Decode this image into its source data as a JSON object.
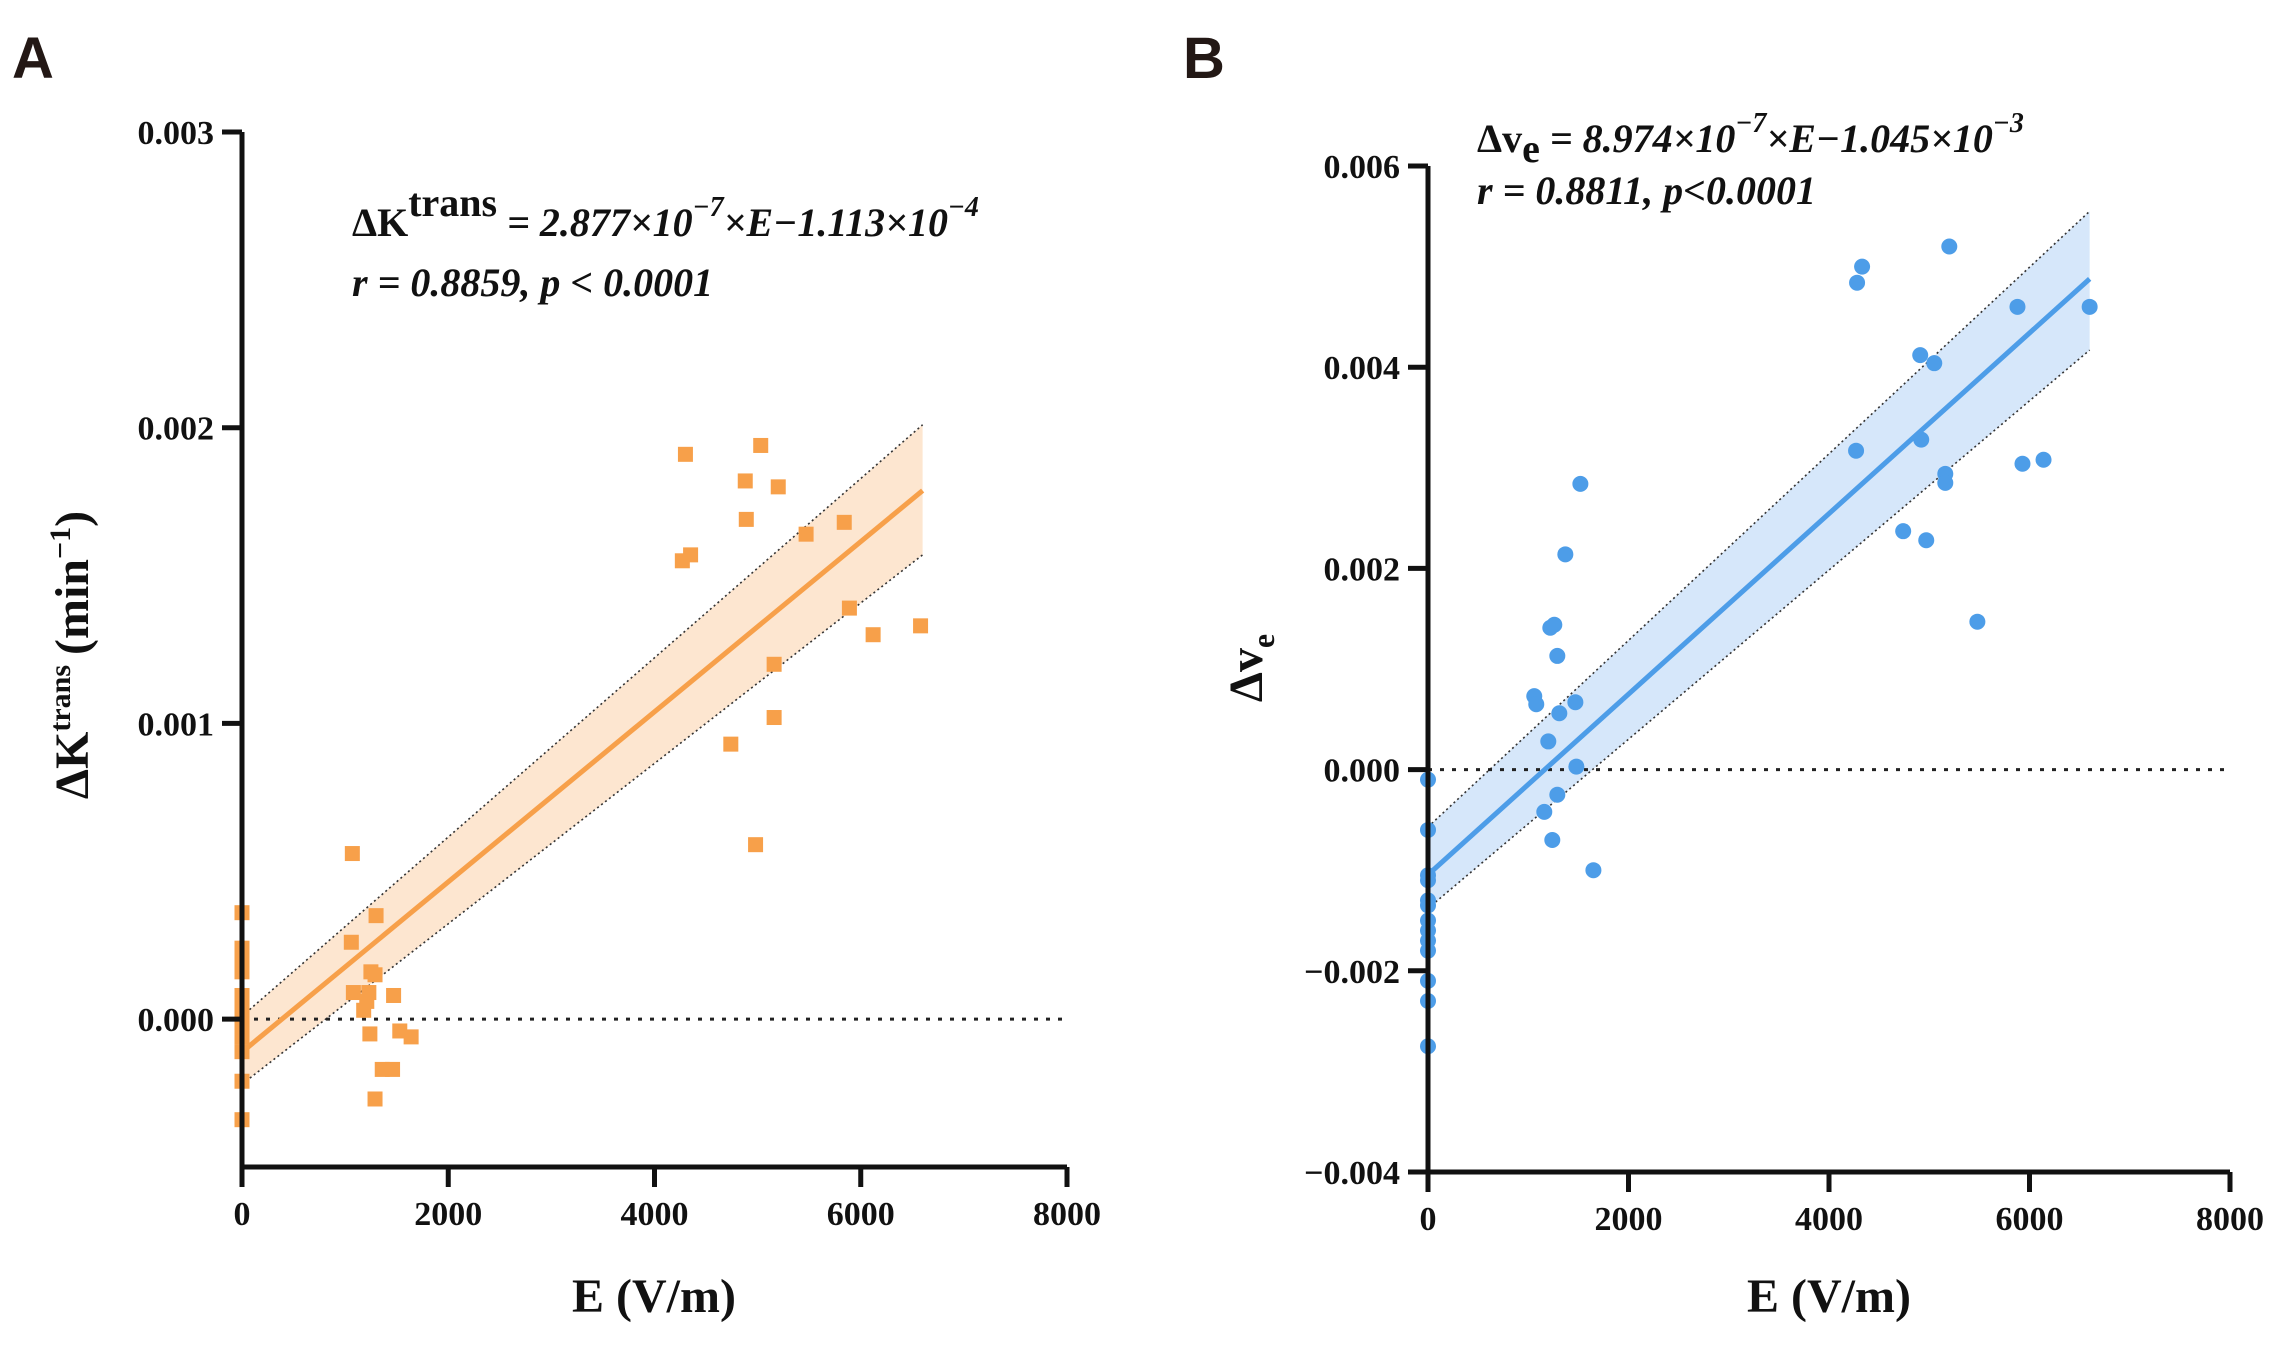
{
  "chart_data": [
    {
      "panel": "A",
      "type": "scatter",
      "xlabel": "E (V/m)",
      "ylabel": {
        "base": "ΔK",
        "sup": "trans",
        "unit_prefix": "(min",
        "unit_sup": "−1",
        "unit_suffix": ")"
      },
      "xlim": [
        0,
        8000
      ],
      "ylim": [
        -0.0005,
        0.003
      ],
      "xticks": [
        0,
        2000,
        4000,
        6000,
        8000
      ],
      "xtick_labels": [
        "0",
        "2000",
        "4000",
        "6000",
        "8000"
      ],
      "yticks": [
        0.0,
        0.001,
        0.002,
        0.003
      ],
      "ytick_labels": [
        "0.000",
        "0.001",
        "0.002",
        "0.003"
      ],
      "equation": {
        "lhs": "ΔK",
        "lhs_sup": "trans",
        "rhs": " = 2.877×10",
        "exp1": "−7",
        "mid": "×E−1.113×10",
        "exp2": "−4"
      },
      "stats": "r = 0.8859, p <  0.0001",
      "marker": "square",
      "color": "#F7A04A",
      "band_color": "#FDE6D0",
      "fit": {
        "slope": 2.877e-07,
        "intercept": -0.0001113,
        "x_range": [
          0,
          6600
        ],
        "ci_lower": [
          -0.00022,
          0.00157
        ],
        "ci_upper": [
          1e-05,
          0.00201
        ]
      },
      "points": [
        {
          "x": 0,
          "y": 0.00036
        },
        {
          "x": 0,
          "y": 0.00024
        },
        {
          "x": 0,
          "y": 0.00022
        },
        {
          "x": 0,
          "y": 0.0002
        },
        {
          "x": 0,
          "y": 0.00018
        },
        {
          "x": 0,
          "y": 0.00016
        },
        {
          "x": 0,
          "y": 8e-05
        },
        {
          "x": 0,
          "y": 4e-05
        },
        {
          "x": 0,
          "y": 0.0
        },
        {
          "x": 0,
          "y": -3e-05
        },
        {
          "x": 0,
          "y": -6e-05
        },
        {
          "x": 0,
          "y": -0.00011
        },
        {
          "x": 0,
          "y": -0.00021
        },
        {
          "x": 0,
          "y": -0.00034
        },
        {
          "x": 1070,
          "y": 0.00056
        },
        {
          "x": 1060,
          "y": 0.00026
        },
        {
          "x": 1300,
          "y": 0.00035
        },
        {
          "x": 1080,
          "y": 9e-05
        },
        {
          "x": 1180,
          "y": 3e-05
        },
        {
          "x": 1230,
          "y": 9e-05
        },
        {
          "x": 1250,
          "y": 0.00016
        },
        {
          "x": 1290,
          "y": 0.00015
        },
        {
          "x": 1210,
          "y": 6e-05
        },
        {
          "x": 1240,
          "y": -5e-05
        },
        {
          "x": 1470,
          "y": 8e-05
        },
        {
          "x": 1530,
          "y": -4e-05
        },
        {
          "x": 1640,
          "y": -6e-05
        },
        {
          "x": 1360,
          "y": -0.00017
        },
        {
          "x": 1460,
          "y": -0.00017
        },
        {
          "x": 1290,
          "y": -0.00027
        },
        {
          "x": 4300,
          "y": 0.00191
        },
        {
          "x": 4270,
          "y": 0.00155
        },
        {
          "x": 4350,
          "y": 0.00157
        },
        {
          "x": 4740,
          "y": 0.00093
        },
        {
          "x": 4980,
          "y": 0.00059
        },
        {
          "x": 5030,
          "y": 0.00194
        },
        {
          "x": 4880,
          "y": 0.00182
        },
        {
          "x": 4890,
          "y": 0.00169
        },
        {
          "x": 5200,
          "y": 0.0018
        },
        {
          "x": 5160,
          "y": 0.0012
        },
        {
          "x": 5160,
          "y": 0.00102
        },
        {
          "x": 5470,
          "y": 0.00164
        },
        {
          "x": 5840,
          "y": 0.00168
        },
        {
          "x": 5890,
          "y": 0.00139
        },
        {
          "x": 6120,
          "y": 0.0013
        },
        {
          "x": 6580,
          "y": 0.00133
        }
      ]
    },
    {
      "panel": "B",
      "type": "scatter",
      "xlabel": "E (V/m)",
      "ylabel": {
        "base": "Δv",
        "sub": "e"
      },
      "xlim": [
        0,
        8000
      ],
      "ylim": [
        -0.004,
        0.006
      ],
      "xticks": [
        0,
        2000,
        4000,
        6000,
        8000
      ],
      "xtick_labels": [
        "0",
        "2000",
        "4000",
        "6000",
        "8000"
      ],
      "yticks": [
        -0.004,
        -0.002,
        0.0,
        0.002,
        0.004,
        0.006
      ],
      "ytick_labels": [
        "−0.004",
        "−0.002",
        "0.000",
        "0.002",
        "0.004",
        "0.006"
      ],
      "equation": {
        "lhs": "Δv",
        "lhs_sub": "e",
        "rhs": "  = 8.974×10",
        "exp1": "−7",
        "mid": "×E−1.045×10",
        "exp2": "−3"
      },
      "stats": "r = 0.8811, p<0.0001",
      "marker": "circle",
      "color": "#4D9DE8",
      "band_color": "#D6E7FA",
      "fit": {
        "slope": 8.974e-07,
        "intercept": -0.001045,
        "x_range": [
          0,
          6600
        ],
        "ci_lower": [
          -0.00138,
          0.00417
        ],
        "ci_upper": [
          -0.00057,
          0.00555
        ]
      },
      "points": [
        {
          "x": 0,
          "y": -0.0001
        },
        {
          "x": 0,
          "y": -0.0006
        },
        {
          "x": 0,
          "y": -0.00105
        },
        {
          "x": 0,
          "y": -0.0011
        },
        {
          "x": 0,
          "y": -0.0013
        },
        {
          "x": 0,
          "y": -0.00135
        },
        {
          "x": 0,
          "y": -0.0015
        },
        {
          "x": 0,
          "y": -0.0016
        },
        {
          "x": 0,
          "y": -0.0017
        },
        {
          "x": 0,
          "y": -0.0018
        },
        {
          "x": 0,
          "y": -0.0021
        },
        {
          "x": 0,
          "y": -0.0023
        },
        {
          "x": 0,
          "y": -0.00275
        },
        {
          "x": 1060,
          "y": 0.00073
        },
        {
          "x": 1080,
          "y": 0.00065
        },
        {
          "x": 1200,
          "y": 0.00028
        },
        {
          "x": 1220,
          "y": 0.00141
        },
        {
          "x": 1260,
          "y": 0.00144
        },
        {
          "x": 1290,
          "y": 0.00113
        },
        {
          "x": 1310,
          "y": 0.00056
        },
        {
          "x": 1370,
          "y": 0.00214
        },
        {
          "x": 1470,
          "y": 0.00067
        },
        {
          "x": 1520,
          "y": 0.00284
        },
        {
          "x": 1160,
          "y": -0.00042
        },
        {
          "x": 1240,
          "y": -0.0007
        },
        {
          "x": 1290,
          "y": -0.00025
        },
        {
          "x": 1480,
          "y": 3e-05
        },
        {
          "x": 1650,
          "y": -0.001
        },
        {
          "x": 4270,
          "y": 0.00317
        },
        {
          "x": 4280,
          "y": 0.00484
        },
        {
          "x": 4330,
          "y": 0.005
        },
        {
          "x": 4740,
          "y": 0.00237
        },
        {
          "x": 4910,
          "y": 0.00412
        },
        {
          "x": 4920,
          "y": 0.00328
        },
        {
          "x": 4970,
          "y": 0.00228
        },
        {
          "x": 5050,
          "y": 0.00404
        },
        {
          "x": 5160,
          "y": 0.00294
        },
        {
          "x": 5160,
          "y": 0.00285
        },
        {
          "x": 5200,
          "y": 0.0052
        },
        {
          "x": 5480,
          "y": 0.00147
        },
        {
          "x": 5880,
          "y": 0.0046
        },
        {
          "x": 5930,
          "y": 0.00304
        },
        {
          "x": 6140,
          "y": 0.00308
        },
        {
          "x": 6600,
          "y": 0.0046
        }
      ]
    }
  ]
}
